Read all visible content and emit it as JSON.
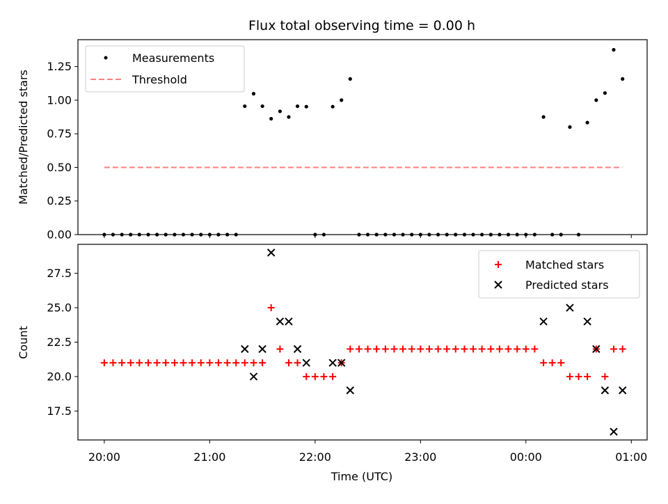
{
  "chart_data": [
    {
      "type": "scatter",
      "title": "Flux total observing time = 0.00 h",
      "xlabel": "",
      "ylabel": "Matched/Predicted stars",
      "xlim": [
        -0.25,
        5.15
      ],
      "ylim": [
        0,
        1.45
      ],
      "yticks": [
        "0.00",
        "0.25",
        "0.50",
        "0.75",
        "1.00",
        "1.25"
      ],
      "ytick_values": [
        0,
        0.25,
        0.5,
        0.75,
        1.0,
        1.25
      ],
      "legend_position": "upper-left",
      "grid": false,
      "series": [
        {
          "name": "Measurements",
          "marker": "dot",
          "color": "#000000",
          "x": [
            0,
            0.083,
            0.167,
            0.25,
            0.333,
            0.417,
            0.5,
            0.583,
            0.667,
            0.75,
            0.833,
            0.917,
            1.0,
            1.083,
            1.167,
            1.25,
            1.333,
            1.417,
            1.5,
            1.583,
            1.667,
            1.75,
            1.833,
            1.917,
            2.0,
            2.083,
            2.167,
            2.25,
            2.333,
            2.417,
            2.5,
            2.583,
            2.667,
            2.75,
            2.833,
            2.917,
            3.0,
            3.083,
            3.167,
            3.25,
            3.333,
            3.417,
            3.5,
            3.583,
            3.667,
            3.75,
            3.833,
            3.917,
            4.0,
            4.083,
            4.167,
            4.25,
            4.333,
            4.417,
            4.5,
            4.583,
            4.667,
            4.75,
            4.833,
            4.917
          ],
          "y": [
            0,
            0,
            0,
            0,
            0,
            0,
            0,
            0,
            0,
            0,
            0,
            0,
            0,
            0,
            0,
            0,
            0.955,
            1.048,
            0.955,
            0.862,
            0.917,
            0.875,
            0.955,
            0.952,
            0,
            0,
            0.952,
            1.0,
            1.158,
            0,
            0,
            0,
            0,
            0,
            0,
            0,
            0,
            0,
            0,
            0,
            0,
            0,
            0,
            0,
            0,
            0,
            0,
            0,
            0,
            0,
            0.875,
            0,
            0,
            0.8,
            0,
            0.833,
            1.0,
            1.053,
            1.375,
            1.158
          ]
        },
        {
          "name": "Threshold",
          "style": "dashed",
          "color": "#ff7f7f",
          "x": [
            0,
            4.917
          ],
          "y": [
            0.5,
            0.5
          ]
        }
      ]
    },
    {
      "type": "scatter",
      "title": "",
      "xlabel": "Time (UTC)",
      "ylabel": "Count",
      "xlim": [
        -0.25,
        5.15
      ],
      "ylim": [
        15.4,
        29.6
      ],
      "yticks": [
        "17.5",
        "20.0",
        "22.5",
        "25.0",
        "27.5"
      ],
      "ytick_values": [
        17.5,
        20.0,
        22.5,
        25.0,
        27.5
      ],
      "xticks": [
        "20:00",
        "21:00",
        "22:00",
        "23:00",
        "00:00",
        "01:00"
      ],
      "xtick_values": [
        0,
        1,
        2,
        3,
        4,
        5
      ],
      "legend_position": "upper-right",
      "grid": false,
      "series": [
        {
          "name": "Matched stars",
          "marker": "plus",
          "color": "#ff0000",
          "x": [
            0,
            0.083,
            0.167,
            0.25,
            0.333,
            0.417,
            0.5,
            0.583,
            0.667,
            0.75,
            0.833,
            0.917,
            1.0,
            1.083,
            1.167,
            1.25,
            1.333,
            1.417,
            1.5,
            1.583,
            1.667,
            1.75,
            1.833,
            1.917,
            2.0,
            2.083,
            2.167,
            2.25,
            2.333,
            2.417,
            2.5,
            2.583,
            2.667,
            2.75,
            2.833,
            2.917,
            3.0,
            3.083,
            3.167,
            3.25,
            3.333,
            3.417,
            3.5,
            3.583,
            3.667,
            3.75,
            3.833,
            3.917,
            4.0,
            4.083,
            4.167,
            4.25,
            4.333,
            4.417,
            4.5,
            4.583,
            4.667,
            4.75,
            4.833,
            4.917
          ],
          "y": [
            21,
            21,
            21,
            21,
            21,
            21,
            21,
            21,
            21,
            21,
            21,
            21,
            21,
            21,
            21,
            21,
            21,
            21,
            21,
            25,
            22,
            21,
            21,
            20,
            20,
            20,
            20,
            21,
            22,
            22,
            22,
            22,
            22,
            22,
            22,
            22,
            22,
            22,
            22,
            22,
            22,
            22,
            22,
            22,
            22,
            22,
            22,
            22,
            22,
            22,
            21,
            21,
            21,
            20,
            20,
            20,
            22,
            20,
            22,
            22
          ]
        },
        {
          "name": "Predicted stars",
          "marker": "x",
          "color": "#000000",
          "x": [
            1.333,
            1.417,
            1.5,
            1.583,
            1.667,
            1.75,
            1.833,
            1.917,
            2.167,
            2.25,
            2.333,
            4.167,
            4.417,
            4.583,
            4.667,
            4.75,
            4.833,
            4.917
          ],
          "y": [
            22,
            20,
            22,
            29,
            24,
            24,
            22,
            21,
            21,
            21,
            19,
            24,
            25,
            24,
            22,
            19,
            16,
            19
          ]
        }
      ]
    }
  ]
}
